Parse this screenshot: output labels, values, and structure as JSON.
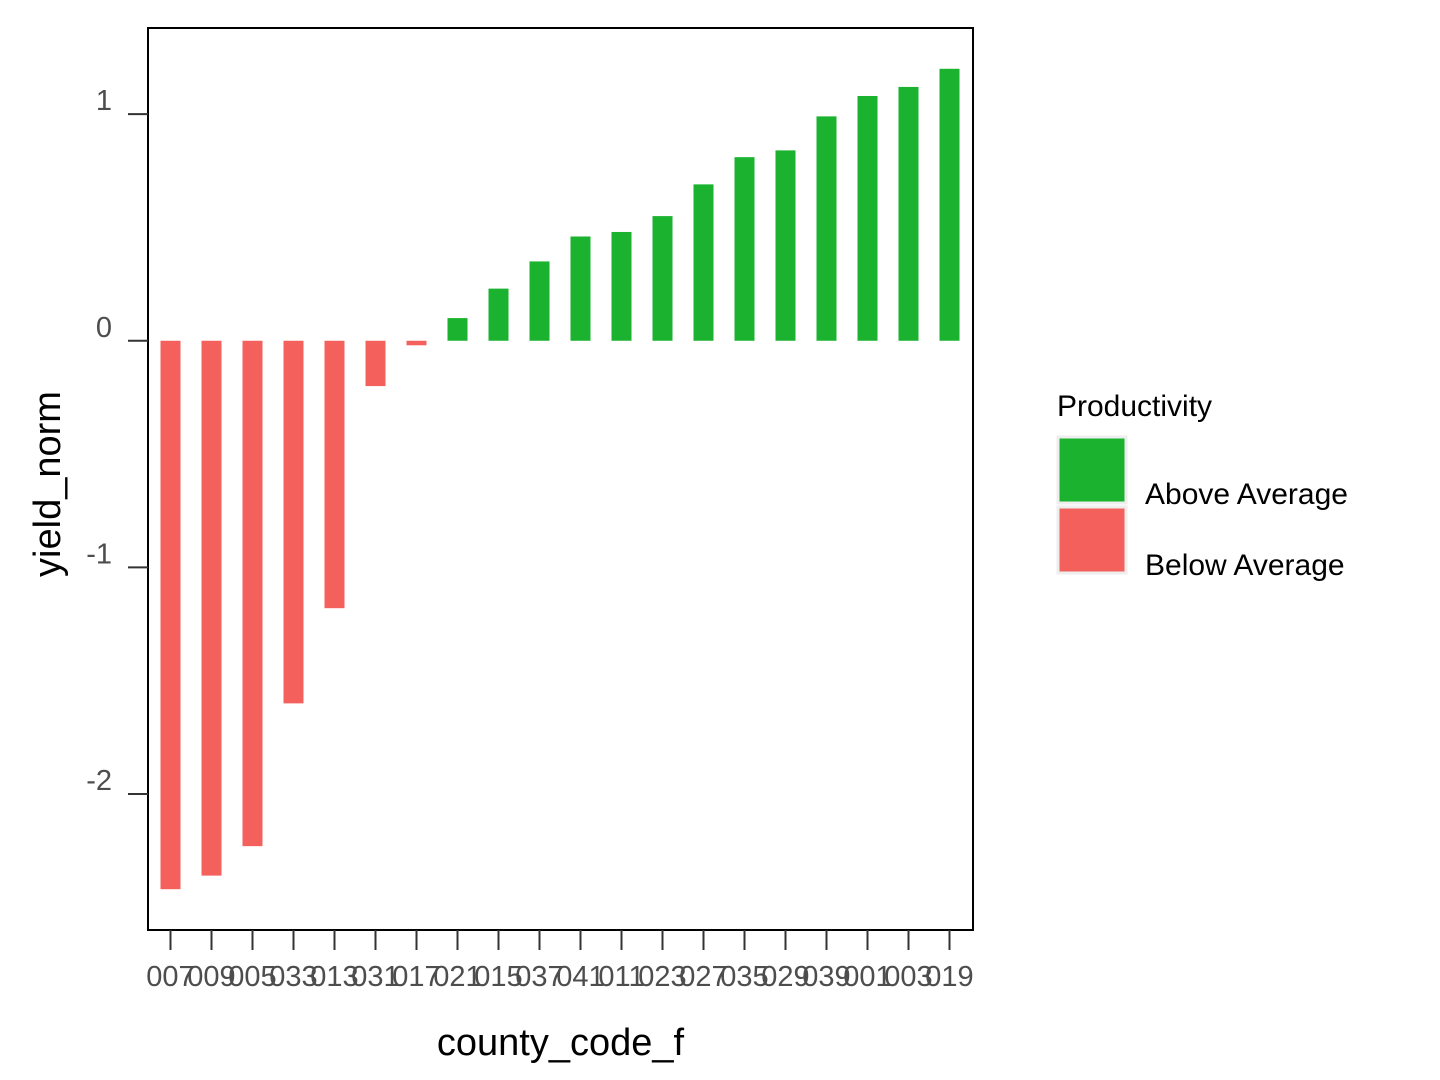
{
  "chart_data": {
    "type": "bar",
    "xlabel": "county_code_f",
    "ylabel": "yield_norm",
    "ylim": [
      -2.6,
      1.38
    ],
    "yticks": [
      -2,
      -1,
      0,
      1
    ],
    "yticklabels": [
      "-2",
      "-1",
      "0",
      "1"
    ],
    "categories": [
      "007",
      "009",
      "005",
      "033",
      "013",
      "031",
      "017",
      "021",
      "015",
      "037",
      "041",
      "011",
      "023",
      "027",
      "035",
      "029",
      "039",
      "001",
      "003",
      "019"
    ],
    "values": [
      -2.42,
      -2.36,
      -2.23,
      -1.6,
      -1.18,
      -0.2,
      -0.02,
      0.1,
      0.23,
      0.35,
      0.46,
      0.48,
      0.55,
      0.69,
      0.81,
      0.84,
      0.99,
      1.08,
      1.12,
      1.2
    ],
    "groups": [
      "Below Average",
      "Below Average",
      "Below Average",
      "Below Average",
      "Below Average",
      "Below Average",
      "Below Average",
      "Above Average",
      "Above Average",
      "Above Average",
      "Above Average",
      "Above Average",
      "Above Average",
      "Above Average",
      "Above Average",
      "Above Average",
      "Above Average",
      "Above Average",
      "Above Average",
      "Above Average"
    ],
    "legend": {
      "title": "Productivity",
      "position": "right",
      "items": [
        {
          "label": "Above Average",
          "color": "#1ab22e"
        },
        {
          "label": "Below Average",
          "color": "#f4605c"
        }
      ]
    },
    "grid": false
  }
}
